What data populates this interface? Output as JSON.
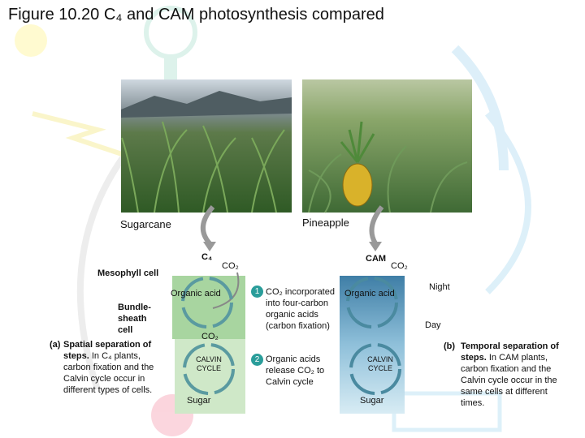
{
  "title": "Figure 10.20 C₄ and CAM photosynthesis compared",
  "photos": [
    {
      "label": "Sugarcane"
    },
    {
      "label": "Pineapple"
    }
  ],
  "c4": {
    "label": "C₄",
    "co2": "CO₂",
    "mesophyll": "Mesophyll cell",
    "organic_acid": "Organic acid",
    "bundle_sheath": "Bundle-sheath cell",
    "co2_inner": "CO₂",
    "calvin": "CALVIN CYCLE",
    "sugar": "Sugar"
  },
  "cam": {
    "label": "CAM",
    "co2": "CO₂",
    "organic_acid": "Organic acid",
    "calvin": "CALVIN CYCLE",
    "sugar": "Sugar",
    "night": "Night",
    "day": "Day"
  },
  "steps": [
    {
      "number": "1",
      "text": "CO₂ incorporated into four-carbon organic acids (carbon fixation)"
    },
    {
      "number": "2",
      "text": "Organic acids release CO₂ to Calvin cycle"
    }
  ],
  "captions": [
    {
      "tag": "(a)",
      "heading": "Spatial separation of steps.",
      "text": "In C₄ plants, carbon fixation and the Calvin cycle occur in different types of cells."
    },
    {
      "tag": "(b)",
      "heading": "Temporal separation of steps.",
      "text": "In CAM plants, carbon fixation and the Calvin cycle occur in the same cells at different times."
    }
  ]
}
